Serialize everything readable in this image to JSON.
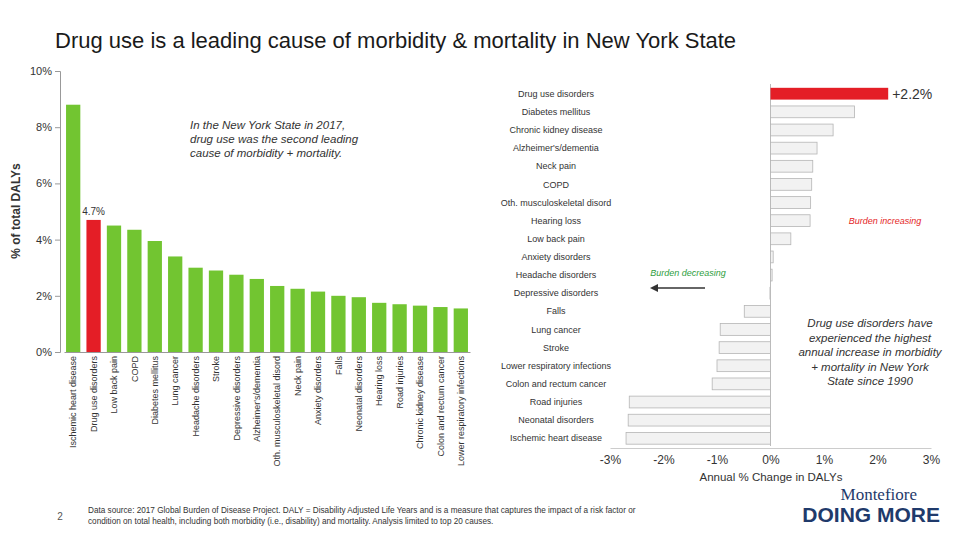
{
  "page": {
    "title": "Drug use is a leading cause of morbidity & mortality in New York State",
    "page_number": "2",
    "footnote": [
      "Data source: 2017 Global Burden of Disease Project. DALY = Disability Adjusted Life Years and is a measure that captures the impact of a risk factor or",
      "condition on total health, including both morbidity (i.e., disability) and mortality.  Analysis limited to top 20 causes."
    ],
    "logo": {
      "name": "Montefiore",
      "tagline": "DOING MORE"
    }
  },
  "chart_data": [
    {
      "type": "bar",
      "y_label": "% of total DALYs",
      "categories": [
        "Ischemic heart disease",
        "Drug use disorders",
        "Low back pain",
        "COPD",
        "Diabetes mellitus",
        "Lung cancer",
        "Headache disorders",
        "Stroke",
        "Depressive disorders",
        "Alzheimer's/dementia",
        "Oth. musculoskeletal disord",
        "Neck pain",
        "Anxiety disorders",
        "Falls",
        "Neonatal disorders",
        "Hearing loss",
        "Road injuries",
        "Chronic kidney disease",
        "Colon and rectum cancer",
        "Lower respiratory infections"
      ],
      "values": [
        8.8,
        4.7,
        4.5,
        4.35,
        3.95,
        3.4,
        3.0,
        2.9,
        2.75,
        2.6,
        2.35,
        2.25,
        2.15,
        2.0,
        1.95,
        1.75,
        1.7,
        1.65,
        1.6,
        1.55
      ],
      "colors": [
        "#72c531",
        "#e41e26",
        "#72c531",
        "#72c531",
        "#72c531",
        "#72c531",
        "#72c531",
        "#72c531",
        "#72c531",
        "#72c531",
        "#72c531",
        "#72c531",
        "#72c531",
        "#72c531",
        "#72c531",
        "#72c531",
        "#72c531",
        "#72c531",
        "#72c531",
        "#72c531"
      ],
      "ylim": [
        0,
        10
      ],
      "yticks": [
        {
          "value": 0,
          "label": "0%"
        },
        {
          "value": 2,
          "label": "2%"
        },
        {
          "value": 4,
          "label": "4%"
        },
        {
          "value": 6,
          "label": "6%"
        },
        {
          "value": 8,
          "label": "8%"
        },
        {
          "value": 10,
          "label": "10%"
        }
      ],
      "annotations": [
        {
          "text": "4.7%",
          "category": "Drug use disorders",
          "value": 4.7
        },
        {
          "lines": [
            "In the New York State in 2017,",
            "drug use was the second leading",
            "cause of morbidity + mortality."
          ]
        }
      ]
    },
    {
      "type": "bar",
      "orientation": "horizontal",
      "x_label": "Annual % Change in DALYs",
      "categories": [
        "Drug use disorders",
        "Diabetes mellitus",
        "Chronic kidney disease",
        "Alzheimer's/dementia",
        "Neck pain",
        "COPD",
        "Oth. musculoskeletal disord",
        "Hearing loss",
        "Low back pain",
        "Anxiety disorders",
        "Headache disorders",
        "Depressive disorders",
        "Falls",
        "Lung cancer",
        "Stroke",
        "Lower respiratory infections",
        "Colon and rectum cancer",
        "Road injuries",
        "Neonatal disorders",
        "Ischemic heart disease"
      ],
      "values": [
        2.2,
        1.57,
        1.17,
        0.87,
        0.79,
        0.77,
        0.75,
        0.74,
        0.38,
        0.05,
        0.03,
        -0.01,
        -0.49,
        -0.94,
        -0.96,
        -1.0,
        -1.09,
        -2.64,
        -2.66,
        -2.7
      ],
      "colors": [
        "#e41e26",
        "#f2f2f2",
        "#f2f2f2",
        "#f2f2f2",
        "#f2f2f2",
        "#f2f2f2",
        "#f2f2f2",
        "#f2f2f2",
        "#f2f2f2",
        "#f2f2f2",
        "#f2f2f2",
        "#f2f2f2",
        "#f2f2f2",
        "#f2f2f2",
        "#f2f2f2",
        "#f2f2f2",
        "#f2f2f2",
        "#f2f2f2",
        "#f2f2f2",
        "#f2f2f2"
      ],
      "xlim": [
        -3,
        3
      ],
      "xticks": [
        {
          "value": -3,
          "label": "-3%"
        },
        {
          "value": -2,
          "label": "-2%"
        },
        {
          "value": -1,
          "label": "-1%"
        },
        {
          "value": 0,
          "label": "0%"
        },
        {
          "value": 1,
          "label": "1%"
        },
        {
          "value": 2,
          "label": "2%"
        },
        {
          "value": 3,
          "label": "3%"
        }
      ],
      "annotations": [
        {
          "text": "+2.2%",
          "category": "Drug use disorders",
          "value": 2.2
        },
        {
          "text": "Burden increasing",
          "color": "#e41e26"
        },
        {
          "text": "Burden decreasing",
          "color": "#2e9e3e"
        },
        {
          "lines": [
            "Drug use disorders have",
            "experienced the highest",
            "annual increase in morbidity",
            "+ mortality in New York",
            "State since 1990"
          ]
        }
      ]
    }
  ]
}
